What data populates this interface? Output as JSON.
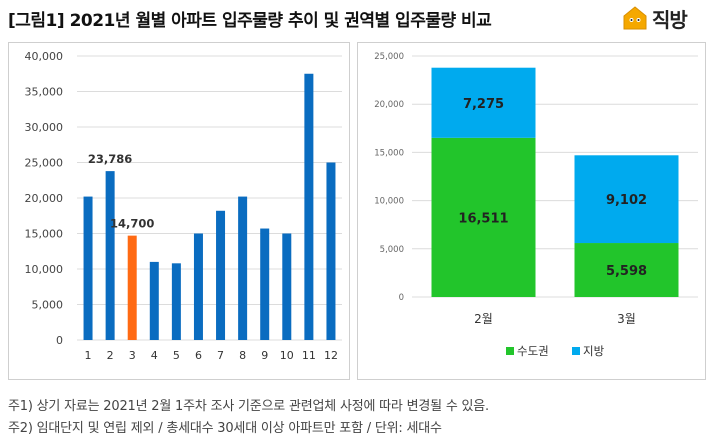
{
  "title": "[그림1] 2021년 월별 아파트 입주물량 추이 및 권역별 입주물량 비교",
  "logo": {
    "text": "직방",
    "icon": "house-icon",
    "color": "#f5a800"
  },
  "footnotes": [
    "주1) 상기 자료는 2021년 2월 1주차 조사 기준으로 관련업체 사정에 따라 변경될 수 있음.",
    "주2) 임대단지 및 연립 제외 / 총세대수 30세대 이상 아파트만 포함 / 단위: 세대수"
  ],
  "chart_data": [
    {
      "type": "bar",
      "categories": [
        "1",
        "2",
        "3",
        "4",
        "5",
        "6",
        "7",
        "8",
        "9",
        "10",
        "11",
        "12"
      ],
      "values": [
        20200,
        23786,
        14700,
        11000,
        10800,
        15000,
        18200,
        20200,
        15700,
        15000,
        37500,
        25000
      ],
      "highlight_index": 2,
      "data_labels": [
        {
          "index": 1,
          "text": "23,786"
        },
        {
          "index": 2,
          "text": "14,700"
        }
      ],
      "ylim": [
        0,
        40000
      ],
      "yticks": [
        0,
        5000,
        10000,
        15000,
        20000,
        25000,
        30000,
        35000,
        40000
      ],
      "ytick_labels": [
        "0",
        "5,000",
        "10,000",
        "15,000",
        "20,000",
        "25,000",
        "30,000",
        "35,000",
        "40,000"
      ],
      "colors": {
        "bar": "#0a6cc0",
        "highlight": "#ff6a13"
      },
      "grid": true
    },
    {
      "type": "bar",
      "stacked": true,
      "categories": [
        "2월",
        "3월"
      ],
      "series": [
        {
          "name": "수도권",
          "values": [
            16511,
            5598
          ],
          "labels": [
            "16,511",
            "5,598"
          ],
          "color": "#22c52b"
        },
        {
          "name": "지방",
          "values": [
            7275,
            9102
          ],
          "labels": [
            "7,275",
            "9,102"
          ],
          "color": "#00aaee"
        }
      ],
      "ylim": [
        0,
        25000
      ],
      "yticks": [
        0,
        5000,
        10000,
        15000,
        20000,
        25000
      ],
      "ytick_labels": [
        "0",
        "5,000",
        "10,000",
        "15,000",
        "20,000",
        "25,000"
      ],
      "legend": "bottom-center",
      "grid": true
    }
  ]
}
